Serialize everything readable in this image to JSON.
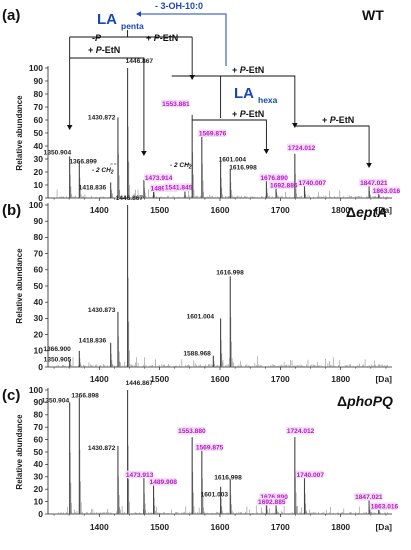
{
  "figure": {
    "colors": {
      "black": "#222222",
      "magenta": "#b419c8",
      "magenta_bg": "#f4def6",
      "blue": "#1a46b4"
    },
    "la_penta": {
      "main": "LA",
      "sub": "penta"
    },
    "la_hexa": {
      "main": "LA",
      "sub": "hexa"
    },
    "blue_annotation": "- 3-OH-10:0",
    "brackets": [
      {
        "text_parts": [
          "-",
          "P"
        ],
        "italic": [
          false,
          true
        ]
      },
      {
        "text_parts": [
          "+ ",
          "P",
          "-EtN"
        ],
        "italic": [
          false,
          true,
          false
        ]
      },
      {
        "text_parts": [
          "+ ",
          "P",
          "-EtN"
        ],
        "italic": [
          false,
          true,
          false
        ]
      },
      {
        "text_parts": [
          "+ ",
          "P",
          "-EtN"
        ],
        "italic": [
          false,
          true,
          false
        ]
      },
      {
        "text_parts": [
          "+ ",
          "P",
          "-EtN"
        ],
        "italic": [
          false,
          true,
          false
        ]
      },
      {
        "text_parts": [
          "+ ",
          "P",
          "-EtN"
        ],
        "italic": [
          false,
          true,
          false
        ]
      }
    ],
    "ch2_labels": [
      "- 2 CH",
      "- 2 CH"
    ],
    "ch2_subscript": "2"
  },
  "chart_data": [
    {
      "type": "bar",
      "panel_label": "(a)",
      "strain_label": "WT",
      "xlabel": "[Da]",
      "ylabel": "Relative abundance",
      "xlim": [
        1315,
        1885
      ],
      "ylim": [
        0,
        100
      ],
      "x_ticks": [
        1400,
        1500,
        1600,
        1700,
        1800
      ],
      "y_ticks": [
        0,
        10,
        20,
        30,
        40,
        50,
        60,
        70,
        80,
        90,
        100
      ],
      "peaks": [
        {
          "mz": 1350.904,
          "y": 32,
          "label": "1350.904",
          "color": "black"
        },
        {
          "mz": 1366.899,
          "y": 28,
          "label": "1366.899",
          "color": "black"
        },
        {
          "mz": 1418.836,
          "y": 12,
          "label": "1418.836",
          "color": "black"
        },
        {
          "mz": 1430.872,
          "y": 62,
          "label": "1430.872",
          "color": "black"
        },
        {
          "mz": 1446.867,
          "y": 100,
          "label": "1446.867",
          "color": "black"
        },
        {
          "mz": 1473.914,
          "y": 14,
          "label": "1473.914",
          "color": "magenta"
        },
        {
          "mz": 1489.909,
          "y": 8,
          "label": "1489.909",
          "color": "magenta"
        },
        {
          "mz": 1541.845,
          "y": 5,
          "label": "1541.845",
          "color": "magenta"
        },
        {
          "mz": 1553.881,
          "y": 64,
          "label": "1553.881",
          "color": "magenta"
        },
        {
          "mz": 1569.876,
          "y": 48,
          "label": "1569.876",
          "color": "magenta"
        },
        {
          "mz": 1601.004,
          "y": 28,
          "label": "1601.004",
          "color": "black"
        },
        {
          "mz": 1616.998,
          "y": 22,
          "label": "1616.998",
          "color": "black"
        },
        {
          "mz": 1676.89,
          "y": 14,
          "label": "1676.890",
          "color": "magenta"
        },
        {
          "mz": 1692.886,
          "y": 9,
          "label": "1692.886",
          "color": "magenta"
        },
        {
          "mz": 1724.012,
          "y": 34,
          "label": "1724.012",
          "color": "magenta"
        },
        {
          "mz": 1740.007,
          "y": 10,
          "label": "1740.007",
          "color": "magenta"
        },
        {
          "mz": 1847.021,
          "y": 10,
          "label": "1847.021",
          "color": "magenta"
        },
        {
          "mz": 1863.016,
          "y": 4,
          "label": "1863.016",
          "color": "magenta"
        }
      ]
    },
    {
      "type": "bar",
      "panel_label": "(b)",
      "strain_label": "ΔeptA",
      "strain_prefix": "Δ",
      "strain_name": "eptA",
      "xlabel": "[Da]",
      "ylabel": "Relative abundance",
      "xlim": [
        1315,
        1885
      ],
      "ylim": [
        0,
        100
      ],
      "x_ticks": [
        1400,
        1500,
        1600,
        1700,
        1800
      ],
      "y_ticks": [
        0,
        10,
        20,
        30,
        40,
        50,
        60,
        70,
        80,
        90,
        100
      ],
      "peaks": [
        {
          "mz": 1350.905,
          "y": 4,
          "label": "1350.905",
          "color": "black"
        },
        {
          "mz": 1366.9,
          "y": 10,
          "label": "1366.900",
          "color": "black"
        },
        {
          "mz": 1418.836,
          "y": 15,
          "label": "1418.836",
          "color": "black"
        },
        {
          "mz": 1430.873,
          "y": 34,
          "label": "1430.873",
          "color": "black"
        },
        {
          "mz": 1446.867,
          "y": 100,
          "label": "1446.867",
          "color": "black"
        },
        {
          "mz": 1588.968,
          "y": 7,
          "label": "1588.968",
          "color": "black"
        },
        {
          "mz": 1601.004,
          "y": 30,
          "label": "1601.004",
          "color": "black"
        },
        {
          "mz": 1616.998,
          "y": 56,
          "label": "1616.998",
          "color": "black"
        }
      ]
    },
    {
      "type": "bar",
      "panel_label": "(c)",
      "strain_label": "ΔphoPQ",
      "strain_prefix": "Δ",
      "strain_name": "phoPQ",
      "xlabel": "[Da]",
      "ylabel": "Relative abundance",
      "xlim": [
        1315,
        1885
      ],
      "ylim": [
        0,
        100
      ],
      "x_ticks": [
        1400,
        1500,
        1600,
        1700,
        1800
      ],
      "y_ticks": [
        0,
        10,
        20,
        30,
        40,
        50,
        60,
        70,
        80,
        90,
        100
      ],
      "peaks": [
        {
          "mz": 1350.904,
          "y": 90,
          "label": "1350.904",
          "color": "black"
        },
        {
          "mz": 1366.898,
          "y": 94,
          "label": "1366.898",
          "color": "black"
        },
        {
          "mz": 1430.872,
          "y": 55,
          "label": "1430.872",
          "color": "black"
        },
        {
          "mz": 1446.867,
          "y": 100,
          "label": "1446.867",
          "color": "black"
        },
        {
          "mz": 1473.913,
          "y": 30,
          "label": "1473.913",
          "color": "magenta"
        },
        {
          "mz": 1489.908,
          "y": 24,
          "label": "1489.908",
          "color": "magenta"
        },
        {
          "mz": 1553.88,
          "y": 62,
          "label": "1553.880",
          "color": "magenta"
        },
        {
          "mz": 1569.875,
          "y": 52,
          "label": "1569.875",
          "color": "magenta"
        },
        {
          "mz": 1601.003,
          "y": 22,
          "label": "1601.003",
          "color": "black"
        },
        {
          "mz": 1616.998,
          "y": 28,
          "label": "1616.998",
          "color": "black"
        },
        {
          "mz": 1676.89,
          "y": 12,
          "label": "1676.890",
          "color": "magenta"
        },
        {
          "mz": 1692.885,
          "y": 8,
          "label": "1692.885",
          "color": "magenta"
        },
        {
          "mz": 1724.012,
          "y": 62,
          "label": "1724.012",
          "color": "magenta"
        },
        {
          "mz": 1740.007,
          "y": 30,
          "label": "1740.007",
          "color": "magenta"
        },
        {
          "mz": 1847.021,
          "y": 12,
          "label": "1847.021",
          "color": "magenta"
        },
        {
          "mz": 1863.016,
          "y": 6,
          "label": "1863.016",
          "color": "magenta"
        }
      ]
    }
  ]
}
